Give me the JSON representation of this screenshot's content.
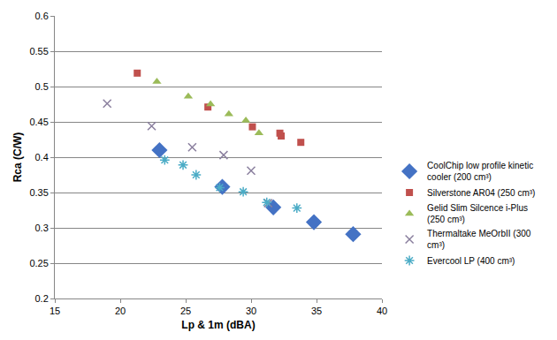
{
  "chart_data": {
    "type": "scatter",
    "x_label": "Lp & 1m (dBA)",
    "y_label": "Rca (C/W)",
    "xlim": [
      15,
      40
    ],
    "xticks": [
      15,
      20,
      25,
      30,
      35,
      40
    ],
    "ylim": [
      0.2,
      0.6
    ],
    "yticks": [
      0.2,
      0.25,
      0.3,
      0.35,
      0.4,
      0.45,
      0.5,
      0.55,
      0.6
    ],
    "grid": true,
    "legend": "right",
    "series": [
      {
        "name": "CoolChip low profile kinetic cooler (200 cm³)",
        "color": "#4472c4",
        "marker": "diamond",
        "x": [
          23.0,
          27.8,
          31.7,
          34.8,
          37.8
        ],
        "values": [
          0.41,
          0.358,
          0.329,
          0.308,
          0.291
        ]
      },
      {
        "name": "Silverstone AR04 (250 cm³)",
        "color": "#c0504d",
        "marker": "square",
        "x": [
          21.3,
          26.7,
          30.1,
          32.2,
          32.3,
          33.8
        ],
        "values": [
          0.519,
          0.471,
          0.443,
          0.434,
          0.43,
          0.421
        ]
      },
      {
        "name": "Gelid Slim Silcence i-Plus (250 cm³)",
        "color": "#9bbb59",
        "marker": "triangle",
        "x": [
          22.8,
          25.2,
          26.9,
          28.3,
          29.6,
          30.6
        ],
        "values": [
          0.507,
          0.486,
          0.475,
          0.461,
          0.452,
          0.434
        ]
      },
      {
        "name": "Thermaltake MeOrbII (300 cm³)",
        "color": "#8a7f9e",
        "marker": "x",
        "x": [
          19.0,
          22.4,
          25.5,
          27.9,
          30.0,
          31.3
        ],
        "values": [
          0.476,
          0.444,
          0.414,
          0.403,
          0.381,
          0.335
        ]
      },
      {
        "name": "Evercool LP (400 cm³)",
        "color": "#4bacc6",
        "marker": "asterisk",
        "x": [
          23.4,
          24.8,
          25.8,
          27.6,
          29.4,
          31.2,
          33.5
        ],
        "values": [
          0.396,
          0.389,
          0.375,
          0.357,
          0.351,
          0.336,
          0.328
        ]
      }
    ]
  }
}
